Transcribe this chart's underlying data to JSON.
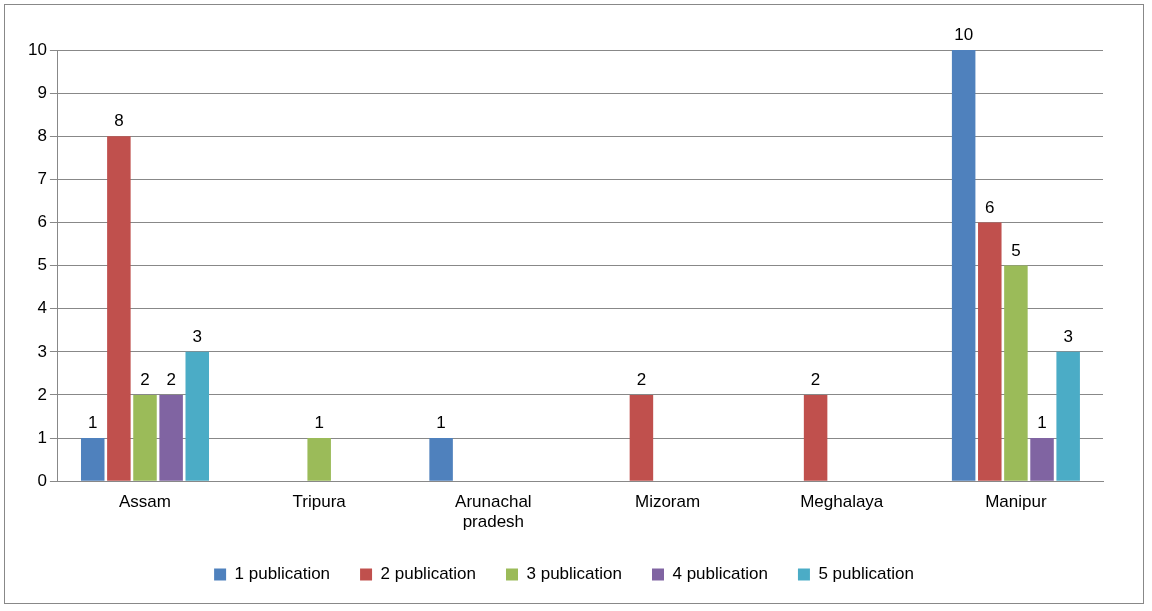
{
  "chart_data": {
    "type": "bar",
    "categories": [
      "Assam",
      "Tripura",
      "Arunachal pradesh",
      "Mizoram",
      "Meghalaya",
      "Manipur"
    ],
    "series": [
      {
        "name": "1 publication",
        "color": "#4f81bd",
        "values": [
          1,
          null,
          1,
          null,
          null,
          10
        ]
      },
      {
        "name": "2 publication",
        "color": "#c0504d",
        "values": [
          8,
          null,
          null,
          2,
          2,
          6
        ]
      },
      {
        "name": "3 publication",
        "color": "#9bbb59",
        "values": [
          2,
          1,
          null,
          null,
          null,
          5
        ]
      },
      {
        "name": "4 publication",
        "color": "#8064a2",
        "values": [
          2,
          null,
          null,
          null,
          null,
          1
        ]
      },
      {
        "name": "5 publication",
        "color": "#4bacc6",
        "values": [
          3,
          null,
          null,
          null,
          null,
          3
        ]
      }
    ],
    "ylim": [
      0,
      10
    ],
    "yticks": [
      0,
      1,
      2,
      3,
      4,
      5,
      6,
      7,
      8,
      9,
      10
    ],
    "grid": "y",
    "legend": "bottom",
    "data_labels": true
  }
}
